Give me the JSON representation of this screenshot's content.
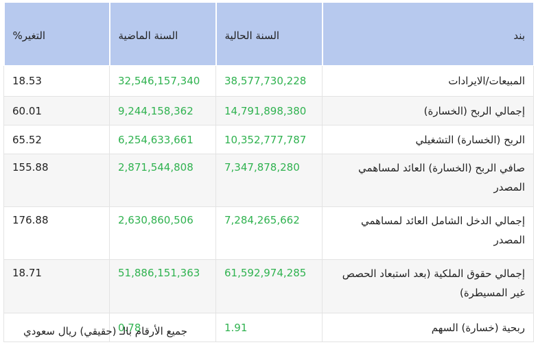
{
  "table": {
    "headers": {
      "label": "بند",
      "current": "السنة الحالية",
      "previous": "السنة الماضية",
      "change": "التغير%"
    },
    "rows": [
      {
        "label": "المبيعات/الايرادات",
        "current": "38,577,730,228",
        "previous": "32,546,157,340",
        "change": "18.53"
      },
      {
        "label": "إجمالي الربح (الخسارة)",
        "current": "14,791,898,380",
        "previous": "9,244,158,362",
        "change": "60.01"
      },
      {
        "label": "الربح (الخسارة) التشغيلي",
        "current": "10,352,777,787",
        "previous": "6,254,633,661",
        "change": "65.52"
      },
      {
        "label": "صافي الربح (الخسارة) العائد لمساهمي المصدر",
        "current": "7,347,878,280",
        "previous": "2,871,544,808",
        "change": "155.88"
      },
      {
        "label": "إجمالي الدخل الشامل العائد لمساهمي المصدر",
        "current": "7,284,265,662",
        "previous": "2,630,860,506",
        "change": "176.88"
      },
      {
        "label": "إجمالي حقوق الملكية (بعد استبعاد الحصص غير المسيطرة)",
        "current": "61,592,974,285",
        "previous": "51,886,151,363",
        "change": "18.71"
      },
      {
        "label": "ربحية (خسارة) السهم",
        "current": "1.91",
        "previous": "0.78",
        "change": ""
      }
    ]
  },
  "footnote": "جميع الأرقام بالـ (حقيقي) ريال سعودي",
  "colors": {
    "header_bg": "#b7c9ee",
    "value_green": "#2fb24f",
    "row_alt_bg": "#f6f6f6"
  }
}
